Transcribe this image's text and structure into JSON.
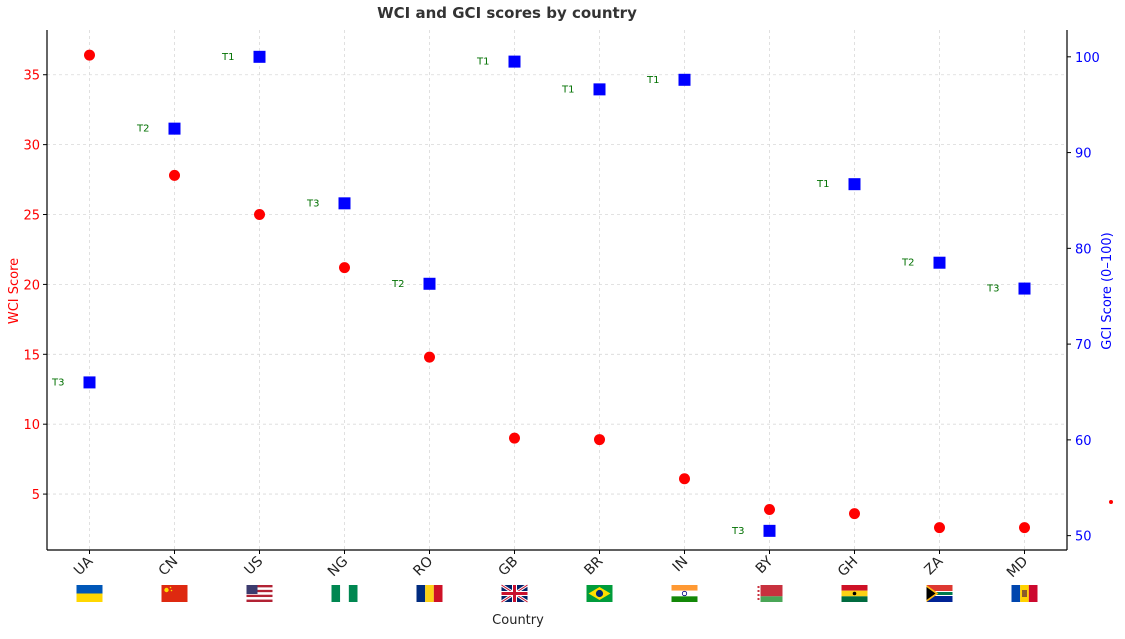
{
  "chart_data": {
    "type": "scatter",
    "title": "WCI and GCI scores by country",
    "xlabel": "Country",
    "ylabel_left": "WCI Score",
    "ylabel_right": "GCI Score (0–100)",
    "categories": [
      "UA",
      "CN",
      "US",
      "NG",
      "RO",
      "GB",
      "BR",
      "IN",
      "BY",
      "GH",
      "ZA",
      "MD"
    ],
    "ylim_left": [
      1.0,
      38.2
    ],
    "ylim_right": [
      48.5,
      102.8
    ],
    "yticks_left": [
      5,
      10,
      15,
      20,
      25,
      30,
      35
    ],
    "yticks_right": [
      50,
      60,
      70,
      80,
      90,
      100
    ],
    "grid": true,
    "series": [
      {
        "axis": "left",
        "marker": "circle",
        "color": "#ff0000",
        "values": [
          36.4,
          27.8,
          25.0,
          21.2,
          14.8,
          9.0,
          8.9,
          6.1,
          3.9,
          3.6,
          2.6,
          2.6
        ]
      },
      {
        "axis": "right",
        "marker": "square",
        "color": "#0000ff",
        "values": [
          66.0,
          92.5,
          100.0,
          84.7,
          76.3,
          99.5,
          96.6,
          97.6,
          50.5,
          86.7,
          78.5,
          75.8
        ],
        "point_labels": [
          "T3",
          "T2",
          "T1",
          "T3",
          "T2",
          "T1",
          "T1",
          "T1",
          "T3",
          "T1",
          "T2",
          "T3"
        ]
      }
    ],
    "colors": {
      "left_axis": "#ff0000",
      "right_axis": "#0000ff",
      "point_label": "#007000",
      "grid": "#d9d9d9"
    }
  },
  "flags": [
    "flag-ua",
    "flag-cn",
    "flag-us",
    "flag-ng",
    "flag-ro",
    "flag-gb",
    "flag-br",
    "flag-in",
    "flag-by",
    "flag-gh",
    "flag-za",
    "flag-md"
  ]
}
